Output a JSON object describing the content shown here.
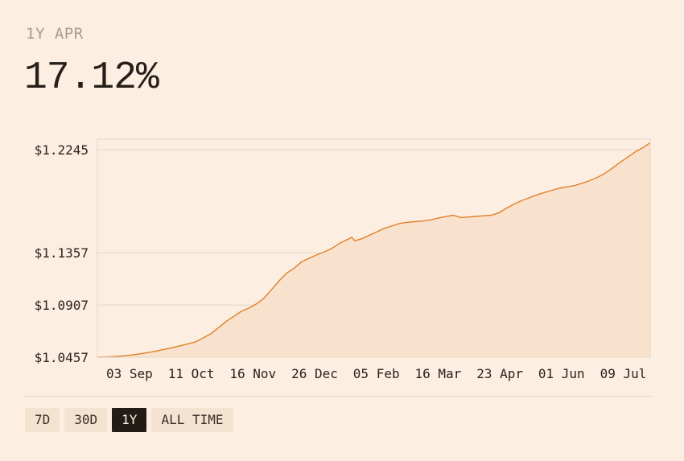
{
  "header": {
    "label": "1Y APR",
    "value": "17.12%"
  },
  "range_selector": {
    "options": [
      "7D",
      "30D",
      "1Y",
      "ALL TIME"
    ],
    "selected": "1Y"
  },
  "colors": {
    "line": "#e07f2a",
    "area": "#f9e2cd",
    "grid": "#e6d5c3",
    "background": "#fcefe1",
    "active_button": "#231b15"
  },
  "chart_data": {
    "type": "area",
    "title": "",
    "xlabel": "",
    "ylabel": "",
    "ylim": [
      1.0457,
      1.2335
    ],
    "yticks": [
      1.0457,
      1.0907,
      1.1357,
      1.2245
    ],
    "ytick_labels": [
      "$1.0457",
      "$1.0907",
      "$1.1357",
      "$1.2245"
    ],
    "xtick_labels": [
      "03 Sep",
      "11 Oct",
      "16 Nov",
      "26 Dec",
      "05 Feb",
      "16 Mar",
      "23 Apr",
      "01 Jun",
      "09 Jul"
    ],
    "grid": true,
    "series": [
      {
        "x": [
          0,
          5,
          10,
          15,
          20,
          25,
          30,
          35,
          40,
          45,
          50,
          55,
          60,
          65,
          70,
          75,
          80,
          85,
          90,
          95,
          100,
          105,
          110,
          115,
          120,
          125,
          130,
          135,
          140,
          145,
          150,
          155,
          160,
          165,
          168,
          170,
          175,
          180,
          185,
          190,
          195,
          200,
          205,
          210,
          215,
          220,
          225,
          230,
          235,
          240,
          245,
          250,
          255,
          260,
          265,
          270,
          275,
          280,
          285,
          290,
          295,
          300,
          305,
          310,
          315,
          320,
          325,
          330,
          335,
          340,
          345,
          350,
          355,
          360,
          365
        ],
        "values": [
          1.0457,
          1.0459,
          1.0462,
          1.0466,
          1.0472,
          1.048,
          1.049,
          1.0501,
          1.0513,
          1.0527,
          1.0541,
          1.0556,
          1.0573,
          1.059,
          1.0624,
          1.066,
          1.0712,
          1.0765,
          1.0808,
          1.0852,
          1.088,
          1.0916,
          1.0965,
          1.104,
          1.1115,
          1.1182,
          1.1225,
          1.128,
          1.131,
          1.134,
          1.1365,
          1.1395,
          1.144,
          1.147,
          1.149,
          1.146,
          1.148,
          1.151,
          1.154,
          1.157,
          1.159,
          1.161,
          1.162,
          1.1625,
          1.163,
          1.164,
          1.1655,
          1.1668,
          1.168,
          1.166,
          1.1665,
          1.167,
          1.1675,
          1.168,
          1.17,
          1.174,
          1.1775,
          1.1805,
          1.183,
          1.1855,
          1.1875,
          1.1895,
          1.1912,
          1.1925,
          1.1935,
          1.1955,
          1.1978,
          1.2005,
          1.204,
          1.2085,
          1.2135,
          1.218,
          1.2225,
          1.226,
          1.2305
        ]
      }
    ]
  }
}
